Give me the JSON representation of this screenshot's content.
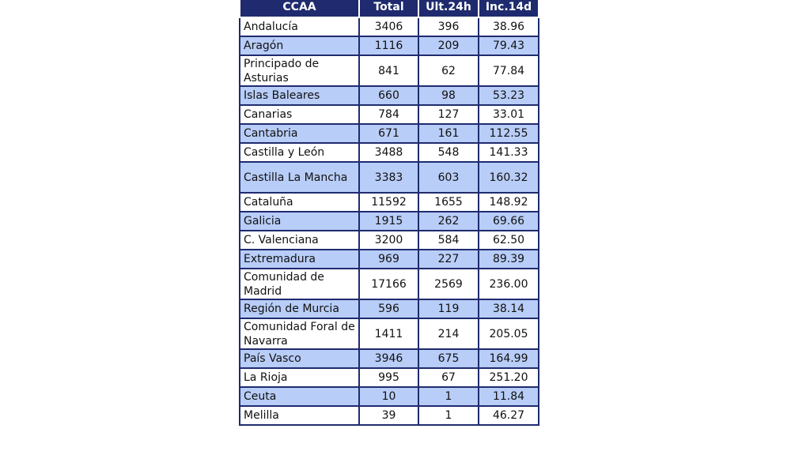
{
  "headers": [
    "CCAA",
    "Total",
    "Ult.24h",
    "Inc.14d"
  ],
  "rows": [
    {
      "ccaa": "Andalucía",
      "total": "3406",
      "ult24h": "396",
      "inc14d": "38.96"
    },
    {
      "ccaa": "Aragón",
      "total": "1116",
      "ult24h": "209",
      "inc14d": "79.43"
    },
    {
      "ccaa": "Principado de Asturias",
      "total": "841",
      "ult24h": "62",
      "inc14d": "77.84"
    },
    {
      "ccaa": "Islas Baleares",
      "total": "660",
      "ult24h": "98",
      "inc14d": "53.23"
    },
    {
      "ccaa": "Canarias",
      "total": "784",
      "ult24h": "127",
      "inc14d": "33.01"
    },
    {
      "ccaa": "Cantabria",
      "total": "671",
      "ult24h": "161",
      "inc14d": "112.55"
    },
    {
      "ccaa": "Castilla y León",
      "total": "3488",
      "ult24h": "548",
      "inc14d": "141.33"
    },
    {
      "ccaa": "Castilla La Mancha",
      "total": "3383",
      "ult24h": "603",
      "inc14d": "160.32"
    },
    {
      "ccaa": "Cataluña",
      "total": "11592",
      "ult24h": "1655",
      "inc14d": "148.92"
    },
    {
      "ccaa": "Galicia",
      "total": "1915",
      "ult24h": "262",
      "inc14d": "69.66"
    },
    {
      "ccaa": "C. Valenciana",
      "total": "3200",
      "ult24h": "584",
      "inc14d": "62.50"
    },
    {
      "ccaa": "Extremadura",
      "total": "969",
      "ult24h": "227",
      "inc14d": "89.39"
    },
    {
      "ccaa": "Comunidad de Madrid",
      "total": "17166",
      "ult24h": "2569",
      "inc14d": "236.00"
    },
    {
      "ccaa": "Región de Murcia",
      "total": "596",
      "ult24h": "119",
      "inc14d": "38.14"
    },
    {
      "ccaa": "Comunidad Foral de Navarra",
      "total": "1411",
      "ult24h": "214",
      "inc14d": "205.05"
    },
    {
      "ccaa": "País Vasco",
      "total": "3946",
      "ult24h": "675",
      "inc14d": "164.99"
    },
    {
      "ccaa": "La Rioja",
      "total": "995",
      "ult24h": "67",
      "inc14d": "251.20"
    },
    {
      "ccaa": "Ceuta",
      "total": "10",
      "ult24h": "1",
      "inc14d": "11.84"
    },
    {
      "ccaa": "Melilla",
      "total": "39",
      "ult24h": "1",
      "inc14d": "46.27"
    }
  ],
  "colors": {
    "header_background": "#1f2b6e",
    "header_text": "#ffffff",
    "alternate_row": "#b8cdf7",
    "row": "#ffffff",
    "border": "#1f2b6e"
  }
}
